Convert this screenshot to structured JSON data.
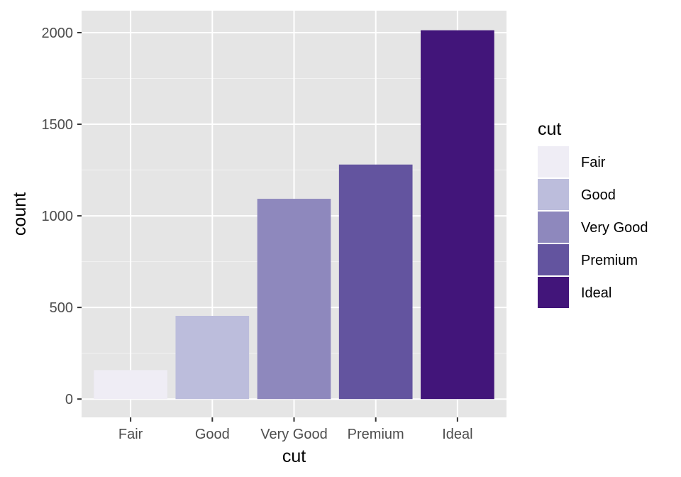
{
  "chart_data": {
    "type": "bar",
    "categories": [
      "Fair",
      "Good",
      "Very Good",
      "Premium",
      "Ideal"
    ],
    "values": [
      158,
      454,
      1093,
      1280,
      2013
    ],
    "colors": [
      "#efedf5",
      "#bcbddc",
      "#8e88bd",
      "#63549f",
      "#42157a"
    ],
    "xlabel": "cut",
    "ylabel": "count",
    "ylim": [
      -100,
      2120
    ],
    "yticks": [
      0,
      500,
      1000,
      1500,
      2000
    ],
    "grid": true,
    "panel_background": "#e5e5e5",
    "legend": {
      "title": "cut",
      "placement": "right",
      "items": [
        "Fair",
        "Good",
        "Very Good",
        "Premium",
        "Ideal"
      ]
    }
  }
}
